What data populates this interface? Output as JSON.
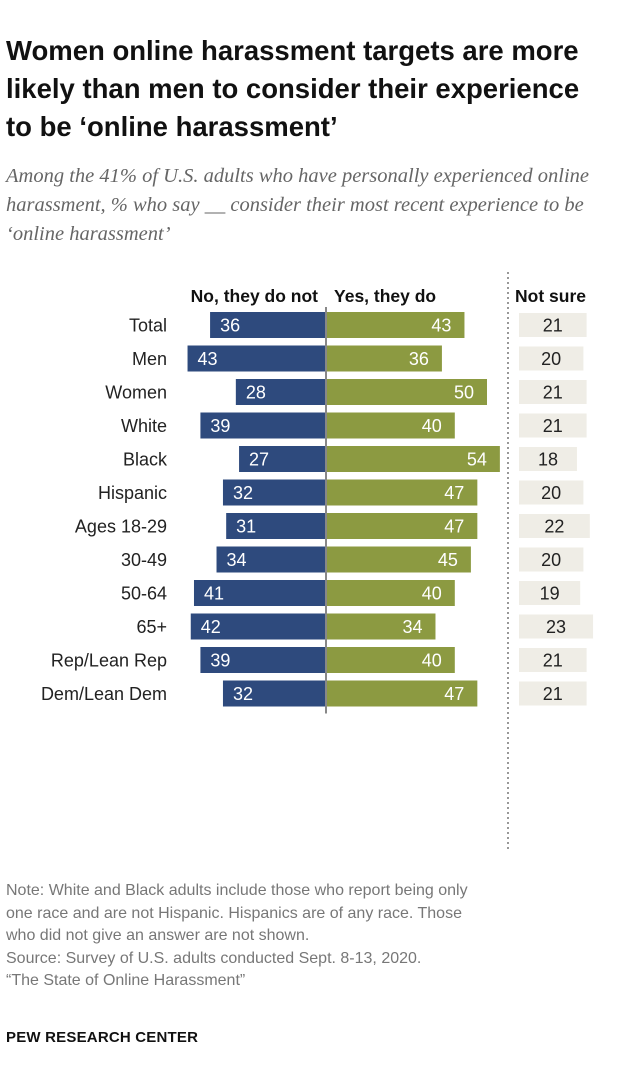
{
  "title": "Women online harassment targets are more likely than men to consider their experience to be ‘online harassment’",
  "subtitle": "Among the 41% of U.S. adults who have personally experienced online harassment, % who say __ consider their most recent experience to be ‘online harassment’",
  "notes": [
    "Note: White and Black adults include those who report being only",
    "one race and are not Hispanic. Hispanics are of any race. Those",
    "who did not give an answer are not shown.",
    "Source: Survey of U.S. adults conducted Sept. 8-13, 2020.",
    "“The State of Online Harassment”"
  ],
  "brand": "PEW RESEARCH CENTER",
  "colors": {
    "no": "#2e4a7d",
    "yes": "#8c9a41",
    "not_sure": "#efede6",
    "axis": "#888888"
  },
  "chart_data": {
    "type": "bar",
    "orientation": "horizontal-diverging",
    "series": [
      {
        "name": "No, they do not",
        "values": [
          36,
          43,
          28,
          39,
          27,
          32,
          31,
          34,
          41,
          42,
          39,
          32
        ]
      },
      {
        "name": "Yes, they do",
        "values": [
          43,
          36,
          50,
          40,
          54,
          47,
          47,
          45,
          40,
          34,
          40,
          47
        ]
      },
      {
        "name": "Not sure",
        "values": [
          21,
          20,
          21,
          21,
          18,
          20,
          22,
          20,
          19,
          23,
          21,
          21
        ]
      }
    ],
    "categories": [
      "Total",
      "Men",
      "Women",
      "White",
      "Black",
      "Hispanic",
      "Ages 18-29",
      "30-49",
      "50-64",
      "65+",
      "Rep/Lean Rep",
      "Dem/Lean Dem"
    ],
    "groups": [
      [
        0
      ],
      [
        1,
        2
      ],
      [
        3,
        4,
        5
      ],
      [
        6,
        7,
        8,
        9
      ],
      [
        10,
        11
      ]
    ]
  }
}
